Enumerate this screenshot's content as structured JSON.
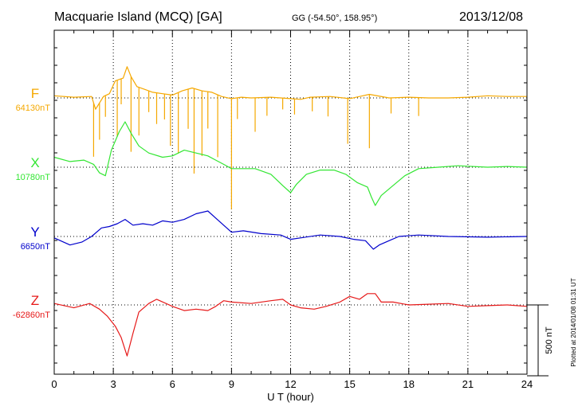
{
  "header": {
    "station": "Macquarie Island (MCQ)  [GA]",
    "coords": "GG (-54.50°, 158.95°)",
    "date": "2013/12/08"
  },
  "plotted_note": "Plotted at 2014/01/08 01:31  UT",
  "chart_data": {
    "type": "line",
    "xlabel": "U T (hour)",
    "xlim": [
      0,
      24
    ],
    "xticks": [
      0,
      3,
      6,
      9,
      12,
      15,
      18,
      21,
      24
    ],
    "scale_bar": {
      "label": "500 nT",
      "nT": 500
    },
    "grid": true,
    "series": [
      {
        "name": "F",
        "baseline_label": "64130nT",
        "color": "#f5a800",
        "points": [
          [
            0,
            15
          ],
          [
            1,
            5
          ],
          [
            1.9,
            10
          ],
          [
            2.1,
            -80
          ],
          [
            2.5,
            10
          ],
          [
            2.8,
            30
          ],
          [
            3.1,
            120
          ],
          [
            3.5,
            140
          ],
          [
            3.7,
            220
          ],
          [
            3.9,
            150
          ],
          [
            4.2,
            80
          ],
          [
            4.6,
            60
          ],
          [
            5.0,
            40
          ],
          [
            5.5,
            30
          ],
          [
            6.0,
            20
          ],
          [
            6.5,
            50
          ],
          [
            7.0,
            70
          ],
          [
            7.5,
            50
          ],
          [
            8.0,
            40
          ],
          [
            8.5,
            10
          ],
          [
            9.0,
            -5
          ],
          [
            9.5,
            5
          ],
          [
            10,
            0
          ],
          [
            11,
            5
          ],
          [
            12,
            -5
          ],
          [
            12.5,
            -10
          ],
          [
            13,
            5
          ],
          [
            14,
            10
          ],
          [
            15,
            -5
          ],
          [
            15.5,
            10
          ],
          [
            16,
            25
          ],
          [
            17,
            0
          ],
          [
            18,
            5
          ],
          [
            19,
            0
          ],
          [
            20,
            0
          ],
          [
            21,
            5
          ],
          [
            22,
            15
          ],
          [
            23,
            10
          ],
          [
            24,
            10
          ]
        ],
        "spikes": [
          [
            2.0,
            -380
          ],
          [
            2.3,
            -260
          ],
          [
            2.6,
            -150
          ],
          [
            3.2,
            -400
          ],
          [
            3.4,
            -180
          ],
          [
            3.9,
            -530
          ],
          [
            4.3,
            -340
          ],
          [
            4.8,
            -150
          ],
          [
            5.2,
            -220
          ],
          [
            5.6,
            -180
          ],
          [
            5.9,
            -360
          ],
          [
            6.3,
            -430
          ],
          [
            6.8,
            -280
          ],
          [
            7.1,
            -600
          ],
          [
            7.5,
            -460
          ],
          [
            7.8,
            -260
          ],
          [
            8.3,
            -440
          ],
          [
            9.0,
            -780
          ],
          [
            9.3,
            -150
          ],
          [
            10.2,
            -240
          ],
          [
            10.8,
            -130
          ],
          [
            11.6,
            -80
          ],
          [
            12.2,
            -110
          ],
          [
            13.1,
            -100
          ],
          [
            13.9,
            -140
          ],
          [
            14.9,
            -320
          ],
          [
            16.0,
            -380
          ],
          [
            17.1,
            -110
          ],
          [
            18.5,
            -130
          ]
        ]
      },
      {
        "name": "X",
        "baseline_label": "10780nT",
        "color": "#33e633",
        "points": [
          [
            0,
            70
          ],
          [
            0.8,
            40
          ],
          [
            1.5,
            50
          ],
          [
            2.0,
            20
          ],
          [
            2.3,
            -40
          ],
          [
            2.6,
            -60
          ],
          [
            2.9,
            120
          ],
          [
            3.3,
            250
          ],
          [
            3.6,
            320
          ],
          [
            3.9,
            240
          ],
          [
            4.3,
            150
          ],
          [
            4.8,
            100
          ],
          [
            5.5,
            70
          ],
          [
            6.0,
            80
          ],
          [
            6.6,
            120
          ],
          [
            7.2,
            100
          ],
          [
            7.8,
            80
          ],
          [
            8.2,
            50
          ],
          [
            8.6,
            20
          ],
          [
            9.0,
            -10
          ],
          [
            9.5,
            -10
          ],
          [
            10.2,
            -10
          ],
          [
            11.0,
            -50
          ],
          [
            11.6,
            -130
          ],
          [
            12.0,
            -180
          ],
          [
            12.3,
            -120
          ],
          [
            12.8,
            -50
          ],
          [
            13.5,
            -20
          ],
          [
            14.2,
            -20
          ],
          [
            14.8,
            -50
          ],
          [
            15.4,
            -110
          ],
          [
            15.9,
            -140
          ],
          [
            16.1,
            -210
          ],
          [
            16.3,
            -270
          ],
          [
            16.6,
            -200
          ],
          [
            17.2,
            -130
          ],
          [
            17.8,
            -60
          ],
          [
            18.5,
            -10
          ],
          [
            19.5,
            0
          ],
          [
            20.5,
            10
          ],
          [
            22,
            0
          ],
          [
            23,
            5
          ],
          [
            24,
            0
          ]
        ]
      },
      {
        "name": "Y",
        "baseline_label": "6650nT",
        "color": "#0000cc",
        "points": [
          [
            0,
            -10
          ],
          [
            0.8,
            -60
          ],
          [
            1.4,
            -40
          ],
          [
            1.9,
            0
          ],
          [
            2.4,
            60
          ],
          [
            2.8,
            70
          ],
          [
            3.2,
            90
          ],
          [
            3.6,
            120
          ],
          [
            4.0,
            80
          ],
          [
            4.5,
            90
          ],
          [
            5.0,
            80
          ],
          [
            5.5,
            110
          ],
          [
            6.0,
            100
          ],
          [
            6.6,
            120
          ],
          [
            7.2,
            160
          ],
          [
            7.8,
            180
          ],
          [
            8.2,
            130
          ],
          [
            8.6,
            80
          ],
          [
            9.0,
            30
          ],
          [
            9.6,
            40
          ],
          [
            10.5,
            20
          ],
          [
            11.5,
            10
          ],
          [
            12.0,
            -20
          ],
          [
            12.5,
            -10
          ],
          [
            13.5,
            10
          ],
          [
            14.5,
            0
          ],
          [
            15.2,
            -20
          ],
          [
            15.8,
            -30
          ],
          [
            16.2,
            -90
          ],
          [
            16.5,
            -60
          ],
          [
            17.0,
            -30
          ],
          [
            17.5,
            0
          ],
          [
            18.5,
            10
          ],
          [
            20,
            0
          ],
          [
            22,
            -5
          ],
          [
            24,
            0
          ]
        ]
      },
      {
        "name": "Z",
        "baseline_label": "-62860nT",
        "color": "#e61919",
        "points": [
          [
            0,
            10
          ],
          [
            1,
            -20
          ],
          [
            1.8,
            10
          ],
          [
            2.3,
            -30
          ],
          [
            2.7,
            -80
          ],
          [
            3.1,
            -150
          ],
          [
            3.4,
            -230
          ],
          [
            3.7,
            -360
          ],
          [
            4.0,
            -200
          ],
          [
            4.3,
            -50
          ],
          [
            4.8,
            10
          ],
          [
            5.2,
            40
          ],
          [
            6.0,
            -10
          ],
          [
            6.6,
            -40
          ],
          [
            7.2,
            -30
          ],
          [
            7.8,
            -40
          ],
          [
            8.2,
            -10
          ],
          [
            8.6,
            30
          ],
          [
            9.0,
            20
          ],
          [
            10,
            10
          ],
          [
            11,
            30
          ],
          [
            11.6,
            40
          ],
          [
            12.0,
            0
          ],
          [
            12.5,
            -20
          ],
          [
            13.2,
            -30
          ],
          [
            13.8,
            -10
          ],
          [
            14.5,
            20
          ],
          [
            15.0,
            60
          ],
          [
            15.5,
            40
          ],
          [
            15.9,
            80
          ],
          [
            16.3,
            80
          ],
          [
            16.6,
            20
          ],
          [
            17.2,
            20
          ],
          [
            18,
            0
          ],
          [
            19,
            5
          ],
          [
            20,
            10
          ],
          [
            21,
            -10
          ],
          [
            22,
            -5
          ],
          [
            23,
            0
          ],
          [
            24,
            -10
          ]
        ]
      }
    ]
  }
}
